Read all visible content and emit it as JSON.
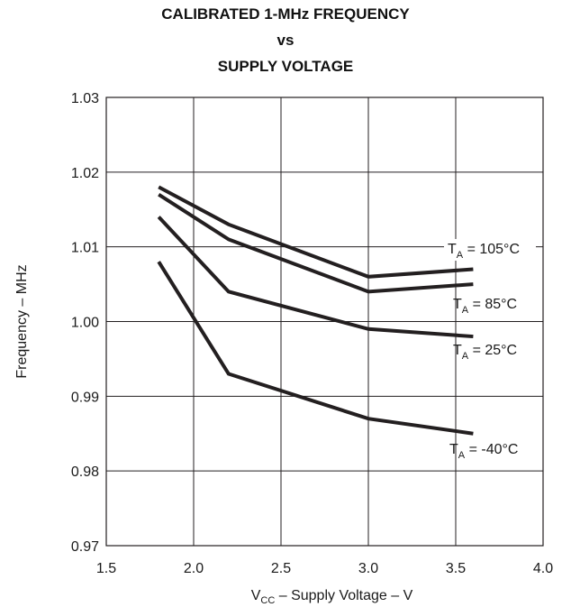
{
  "chart_data": {
    "type": "line",
    "title": "CALIBRATED 1-MHz FREQUENCY",
    "title_line2": "vs",
    "title_line3": "SUPPLY VOLTAGE",
    "xlabel": {
      "main": "V",
      "sub": "CC",
      "rest": " – Supply Voltage – V"
    },
    "ylabel": "Frequency – MHz",
    "xlim": [
      1.5,
      4.0
    ],
    "ylim": [
      0.97,
      1.03
    ],
    "xticks": [
      "1.5",
      "2.0",
      "2.5",
      "3.0",
      "3.5",
      "4.0"
    ],
    "yticks": [
      "0.97",
      "0.98",
      "0.99",
      "1.00",
      "1.01",
      "1.02",
      "1.03"
    ],
    "grid": true,
    "line_color": "#231f20",
    "series": [
      {
        "label_main": "T",
        "label_sub": "A",
        "label_rest": " = 105°C",
        "x": [
          1.8,
          2.2,
          3.0,
          3.6
        ],
        "y": [
          1.018,
          1.013,
          1.006,
          1.007
        ]
      },
      {
        "label_main": "T",
        "label_sub": "A",
        "label_rest": " = 85°C",
        "x": [
          1.8,
          2.2,
          3.0,
          3.6
        ],
        "y": [
          1.017,
          1.011,
          1.004,
          1.005
        ]
      },
      {
        "label_main": "T",
        "label_sub": "A",
        "label_rest": " = 25°C",
        "x": [
          1.8,
          2.2,
          3.0,
          3.6
        ],
        "y": [
          1.014,
          1.004,
          0.999,
          0.998
        ]
      },
      {
        "label_main": "T",
        "label_sub": "A",
        "label_rest": " = -40°C",
        "x": [
          1.8,
          2.2,
          3.0,
          3.6
        ],
        "y": [
          1.008,
          0.993,
          0.987,
          0.985
        ]
      }
    ]
  }
}
